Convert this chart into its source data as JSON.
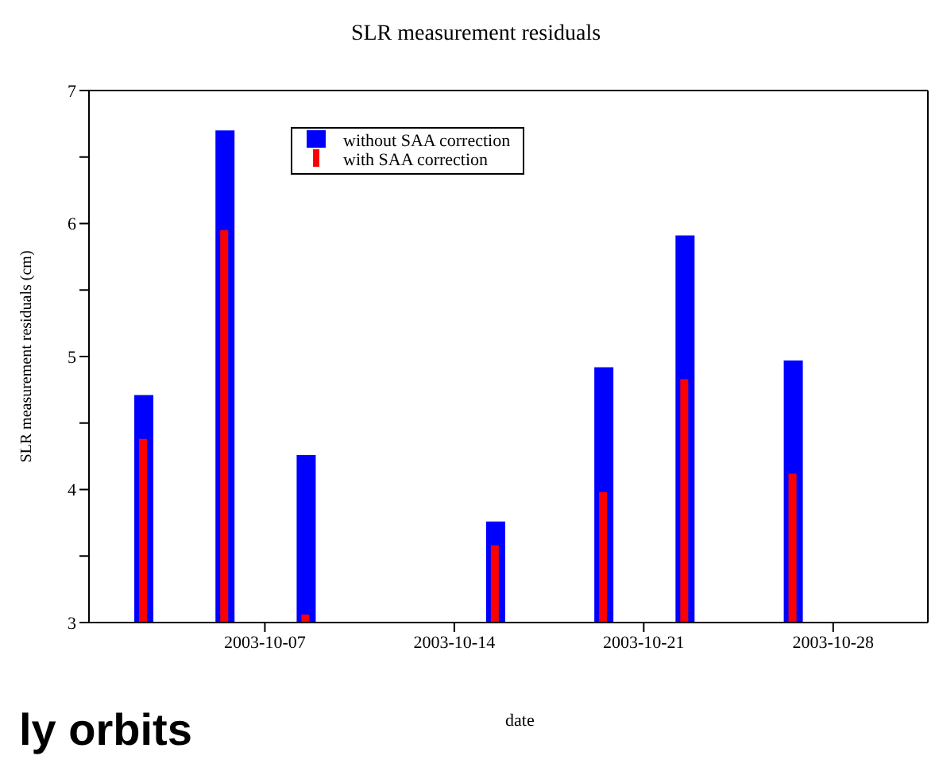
{
  "chart_data": {
    "type": "bar",
    "title": "SLR measurement residuals",
    "xlabel": "date",
    "ylabel": "SLR  measurement residuals (cm)",
    "x": [
      "2003-10-02T12:00",
      "2003-10-05T12:00",
      "2003-10-08T12:00",
      "2003-10-15T12:00",
      "2003-10-19T12:00",
      "2003-10-22T12:00",
      "2003-10-26T12:00"
    ],
    "series": [
      {
        "name": "without SAA correction",
        "color": "#0000ff",
        "values": [
          4.71,
          6.7,
          4.26,
          3.76,
          4.92,
          5.91,
          4.97
        ]
      },
      {
        "name": "with SAA correction",
        "color": "#ff0000",
        "values": [
          4.38,
          5.95,
          3.06,
          3.58,
          3.98,
          4.83,
          4.12
        ]
      }
    ],
    "xlim": [
      "2003-09-30T12:00",
      "2003-10-31T12:00"
    ],
    "xticks": [
      "2003-10-07",
      "2003-10-14",
      "2003-10-21",
      "2003-10-28"
    ],
    "ylim": [
      3,
      7
    ],
    "yticks": [
      3,
      {
        "value": 3.5,
        "label": null
      },
      4,
      {
        "value": 4.5,
        "label": null
      },
      5,
      {
        "value": 5.5,
        "label": null
      },
      6,
      {
        "value": 6.5,
        "label": null
      },
      7
    ],
    "legend": "top",
    "annotations": [
      "ly orbits"
    ]
  }
}
